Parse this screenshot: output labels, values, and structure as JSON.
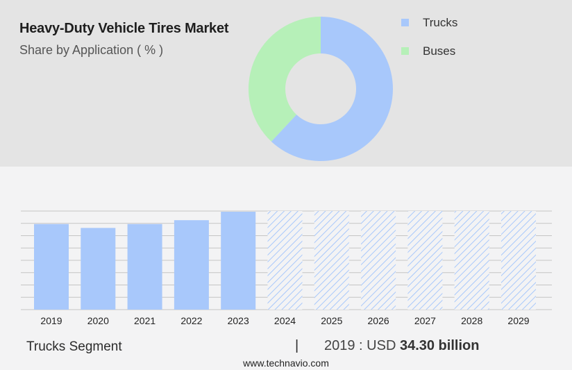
{
  "header": {
    "title": "Heavy-Duty Vehicle Tires Market",
    "subtitle": "Share by Application ( % )"
  },
  "legend": [
    {
      "label": "Trucks",
      "color": "#a8c8fb"
    },
    {
      "label": "Buses",
      "color": "#b6f0b8"
    }
  ],
  "footer": {
    "segment_label": "Trucks Segment",
    "separator": "|",
    "year_label": "2019 : USD",
    "value": "34.30 billion"
  },
  "website": "www.technavio.com",
  "chart_data": [
    {
      "type": "pie",
      "style": "donut",
      "title": "Share by Application ( % )",
      "slices": [
        {
          "label": "Trucks",
          "value": 62,
          "color": "#a8c8fb"
        },
        {
          "label": "Buses",
          "value": 38,
          "color": "#b6f0b8"
        }
      ]
    },
    {
      "type": "bar",
      "categories": [
        "2019",
        "2020",
        "2021",
        "2022",
        "2023",
        "2024",
        "2025",
        "2026",
        "2027",
        "2028",
        "2029"
      ],
      "values": [
        34.3,
        33.2,
        34.3,
        35.4,
        37.8,
        null,
        null,
        null,
        null,
        null,
        null
      ],
      "forecast_categories": [
        "2024",
        "2025",
        "2026",
        "2027",
        "2028",
        "2029"
      ],
      "forecast_style": "hatched",
      "ylim": [
        10,
        38
      ],
      "grid": true,
      "xlabel": "",
      "ylabel": "",
      "color": "#a8c8fb"
    }
  ]
}
